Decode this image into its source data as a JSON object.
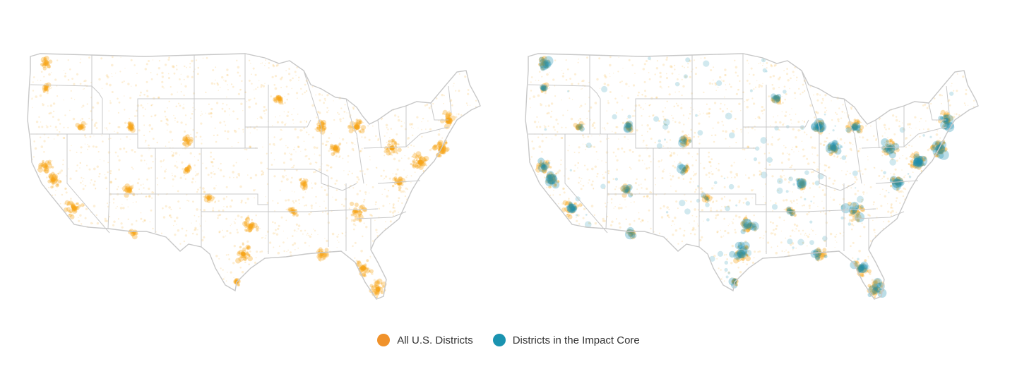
{
  "legend": {
    "all_districts": {
      "label": "All U.S. Districts",
      "color": "#F0922B"
    },
    "impact_core": {
      "label": "Districts in the Impact Core",
      "color": "#1A93B0"
    }
  },
  "colors": {
    "all_points": "#F5A51E",
    "core_points": "#1A8FB0",
    "state_borders": "#c8c8c8"
  },
  "maps": [
    {
      "name": "all-districts-map",
      "series": "all"
    },
    {
      "name": "impact-core-map",
      "series": "core"
    }
  ]
}
